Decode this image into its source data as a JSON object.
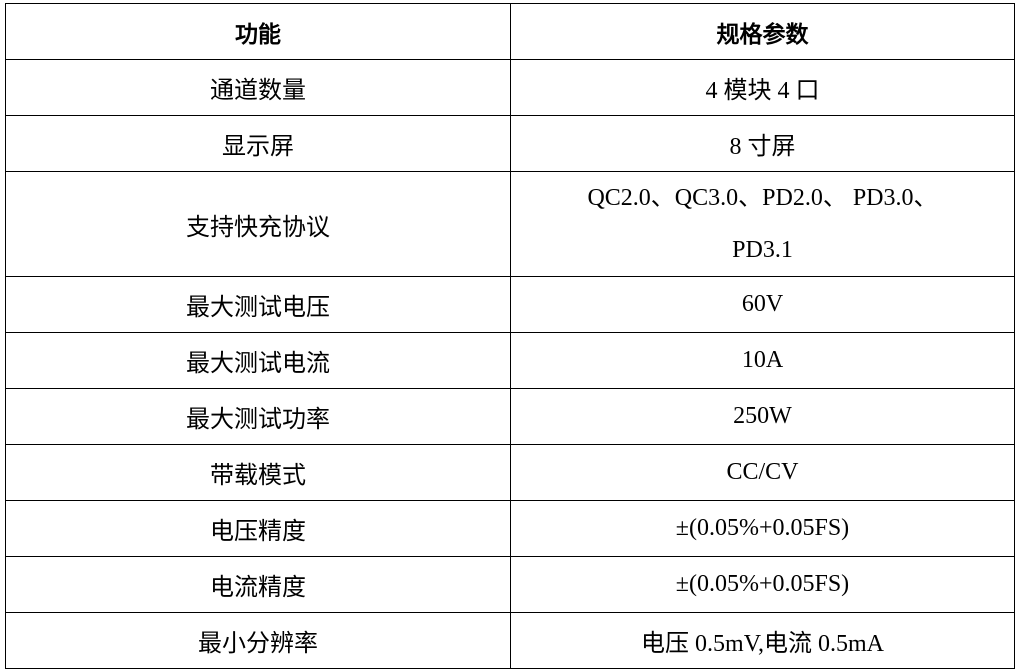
{
  "table": {
    "headers": [
      "功能",
      "规格参数"
    ],
    "rows": [
      {
        "feature": "通道数量",
        "spec": "4 模块 4 口"
      },
      {
        "feature": "显示屏",
        "spec": "8 寸屏"
      },
      {
        "feature": "支持快充协议",
        "spec": "QC2.0、QC3.0、PD2.0、 PD3.0、PD3.1"
      },
      {
        "feature": "最大测试电压",
        "spec": "60V"
      },
      {
        "feature": "最大测试电流",
        "spec": "10A"
      },
      {
        "feature": "最大测试功率",
        "spec": "250W"
      },
      {
        "feature": "带载模式",
        "spec": "CC/CV"
      },
      {
        "feature": "电压精度",
        "spec": "±(0.05%+0.05FS)"
      },
      {
        "feature": "电流精度",
        "spec": "±(0.05%+0.05FS)"
      },
      {
        "feature": "最小分辨率",
        "spec": "电压 0.5mV,电流 0.5mA"
      }
    ]
  }
}
